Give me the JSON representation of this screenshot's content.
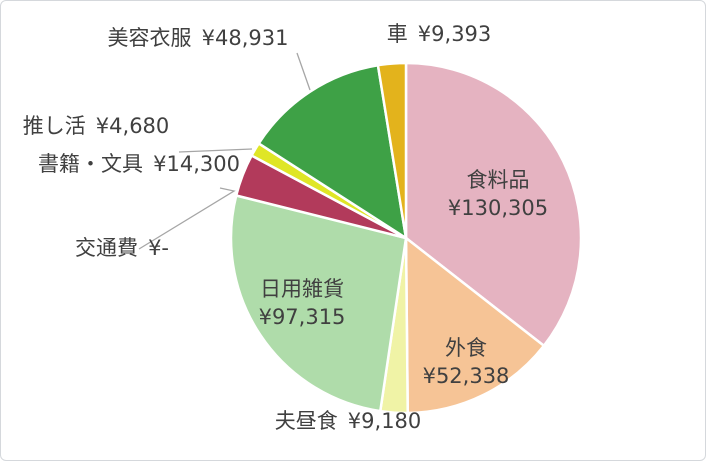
{
  "frame": {
    "background": "#ffffff",
    "border_color": "#d5d8dc"
  },
  "text_color": "#404040",
  "leader_line_color": "#a6a6a6",
  "slice_gap_color": "#ffffff",
  "chart_data": {
    "type": "pie",
    "title": "",
    "legend": "none",
    "currency_symbol": "¥",
    "total_value": 366442,
    "start_angle_deg": 0,
    "direction": "clockwise",
    "slices": [
      {
        "label": "食料品",
        "value": 130305,
        "value_display": "¥130,305",
        "color": "#E5B3C1",
        "label_placement": "inside",
        "leader_line": false
      },
      {
        "label": "外食",
        "value": 52338,
        "value_display": "¥52,338",
        "color": "#F6C496",
        "label_placement": "inside",
        "leader_line": false
      },
      {
        "label": "夫昼食",
        "value": 9180,
        "value_display": "¥9,180",
        "color": "#F0F3A6",
        "label_placement": "outside",
        "leader_line": false
      },
      {
        "label": "日用雑貨",
        "value": 97315,
        "value_display": "¥97,315",
        "color": "#AFDCAA",
        "label_placement": "inside",
        "leader_line": false
      },
      {
        "label": "交通費",
        "value": 0,
        "value_display": "¥-",
        "color": null,
        "label_placement": "outside",
        "leader_line": true
      },
      {
        "label": "書籍・文具",
        "value": 14300,
        "value_display": "¥14,300",
        "color": "#B23A5B",
        "label_placement": "outside",
        "leader_line": false
      },
      {
        "label": "推し活",
        "value": 4680,
        "value_display": "¥4,680",
        "color": "#DFE626",
        "label_placement": "outside",
        "leader_line": true
      },
      {
        "label": "美容衣服",
        "value": 48931,
        "value_display": "¥48,931",
        "color": "#3EA146",
        "label_placement": "outside",
        "leader_line": true
      },
      {
        "label": "車",
        "value": 9393,
        "value_display": "¥9,393",
        "color": "#E3B31C",
        "label_placement": "outside",
        "leader_line": false
      }
    ]
  }
}
